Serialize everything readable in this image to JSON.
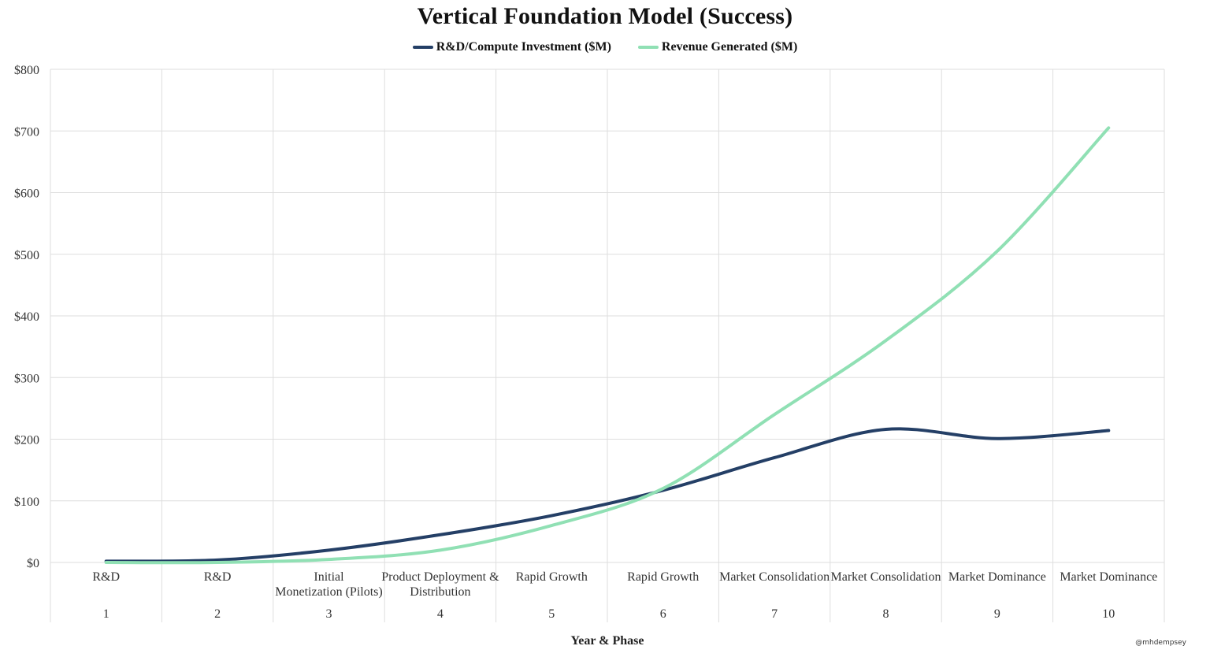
{
  "chart_data": {
    "type": "line",
    "title": "Vertical Foundation Model (Success)",
    "xlabel": "Year & Phase",
    "ylabel": "",
    "ylim": [
      0,
      800
    ],
    "yticks": [
      0,
      100,
      200,
      300,
      400,
      500,
      600,
      700,
      800
    ],
    "ytick_labels": [
      "$0",
      "$100",
      "$200",
      "$300",
      "$400",
      "$500",
      "$600",
      "$700",
      "$800"
    ],
    "categories": [
      {
        "phase": "R&D",
        "year": "1"
      },
      {
        "phase": "R&D",
        "year": "2"
      },
      {
        "phase": "Initial Monetization (Pilots)",
        "year": "3"
      },
      {
        "phase": "Product Deployment & Distribution",
        "year": "4"
      },
      {
        "phase": "Rapid Growth",
        "year": "5"
      },
      {
        "phase": "Rapid Growth",
        "year": "6"
      },
      {
        "phase": "Market Consolidation",
        "year": "7"
      },
      {
        "phase": "Market Consolidation",
        "year": "8"
      },
      {
        "phase": "Market Dominance",
        "year": "9"
      },
      {
        "phase": "Market Dominance",
        "year": "10"
      }
    ],
    "series": [
      {
        "name": "R&D/Compute Investment ($M)",
        "color": "#243f66",
        "values": [
          2,
          4,
          20,
          45,
          76,
          117,
          170,
          216,
          201,
          214
        ]
      },
      {
        "name": "Revenue Generated ($M)",
        "color": "#90e0b4",
        "values": [
          0,
          0,
          5,
          20,
          60,
          120,
          240,
          360,
          505,
          705
        ]
      }
    ],
    "grid": true,
    "legend_position": "top-center"
  },
  "watermark": "@mhdempsey"
}
